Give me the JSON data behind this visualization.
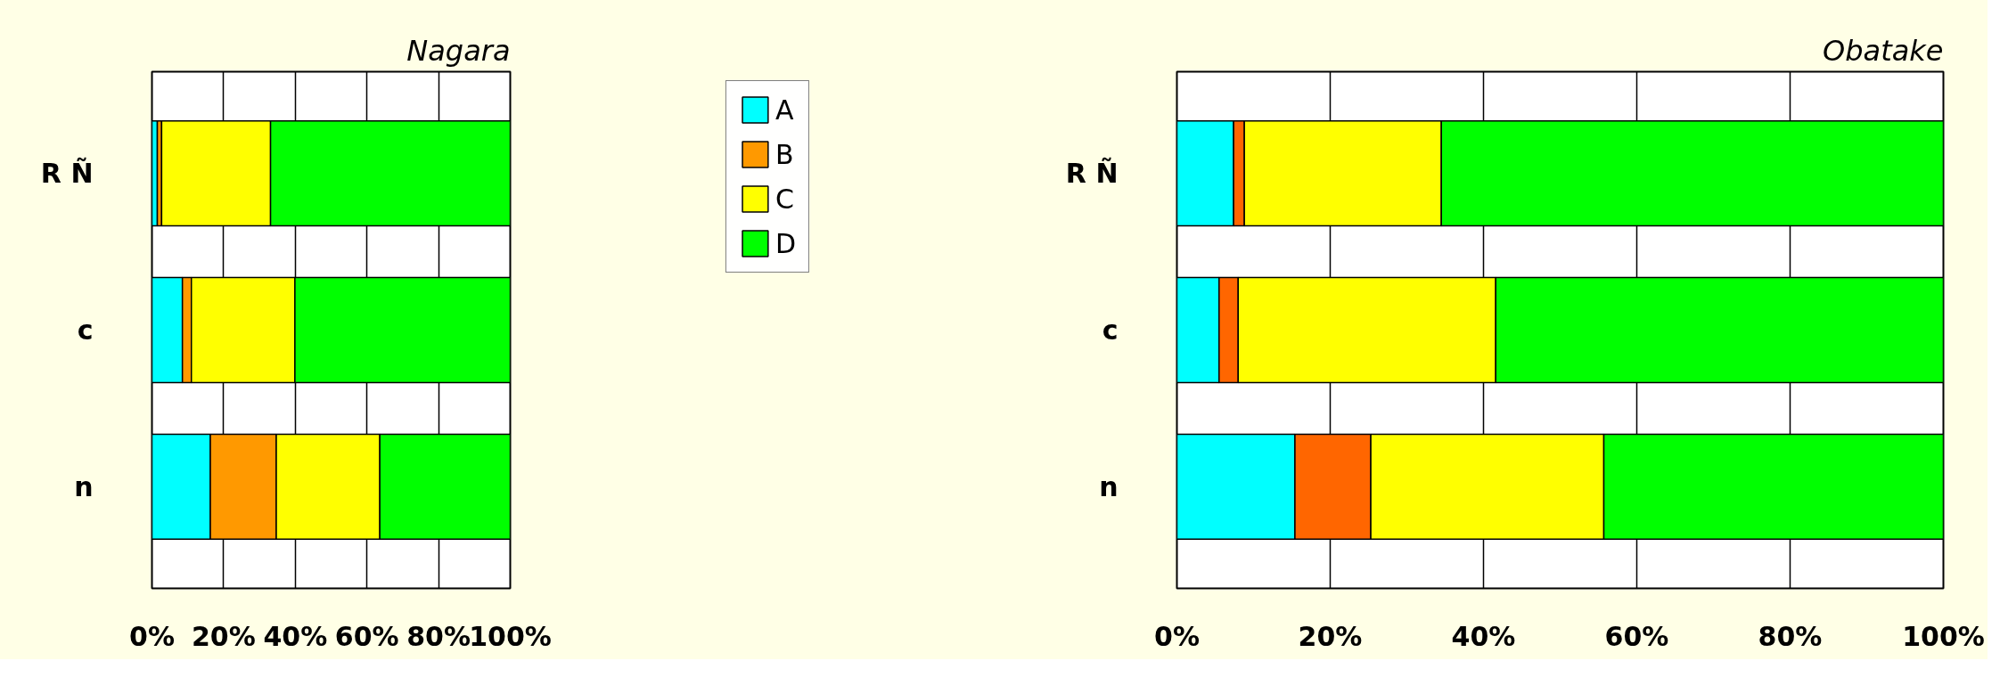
{
  "chart_data": [
    {
      "type": "bar",
      "orientation": "horizontal",
      "stacked": true,
      "title": "Nagara",
      "categories": [
        "R Ñ",
        "c",
        "n"
      ],
      "series": [
        {
          "name": "A",
          "color": "#00ffff",
          "values": [
            1.5,
            8.5,
            16.3
          ]
        },
        {
          "name": "B",
          "color": "#ff9900",
          "values": [
            1.2,
            2.5,
            18.4
          ]
        },
        {
          "name": "C",
          "color": "#ffff00",
          "values": [
            30.4,
            28.9,
            28.9
          ]
        },
        {
          "name": "D",
          "color": "#00ff00",
          "values": [
            66.9,
            60.1,
            36.4
          ]
        }
      ],
      "xlim": [
        0,
        100
      ],
      "xticks": [
        {
          "value": 0,
          "label": "0%"
        },
        {
          "value": 20,
          "label": "20%"
        },
        {
          "value": 40,
          "label": "40%"
        },
        {
          "value": 60,
          "label": "60%"
        },
        {
          "value": 80,
          "label": "80%"
        },
        {
          "value": 100,
          "label": "100%"
        }
      ],
      "grid": "x",
      "legend": "top right"
    },
    {
      "type": "bar",
      "orientation": "horizontal",
      "stacked": true,
      "title": "Obatake",
      "categories": [
        "R Ñ",
        "c",
        "n"
      ],
      "series": [
        {
          "color": "#00ffff",
          "values": [
            7.4,
            5.5,
            15.4
          ]
        },
        {
          "color": "#ff6600",
          "values": [
            1.4,
            2.5,
            9.9
          ]
        },
        {
          "color": "#ffff00",
          "values": [
            25.7,
            33.6,
            30.4
          ]
        },
        {
          "color": "#00ff00",
          "values": [
            65.5,
            58.4,
            44.3
          ]
        }
      ],
      "xlim": [
        0,
        100
      ],
      "xticks": [
        {
          "value": 0,
          "label": "0%"
        },
        {
          "value": 20,
          "label": "20%"
        },
        {
          "value": 40,
          "label": "40%"
        },
        {
          "value": 60,
          "label": "60%"
        },
        {
          "value": 80,
          "label": "80%"
        },
        {
          "value": 100,
          "label": "100%"
        }
      ],
      "grid": "x"
    }
  ]
}
